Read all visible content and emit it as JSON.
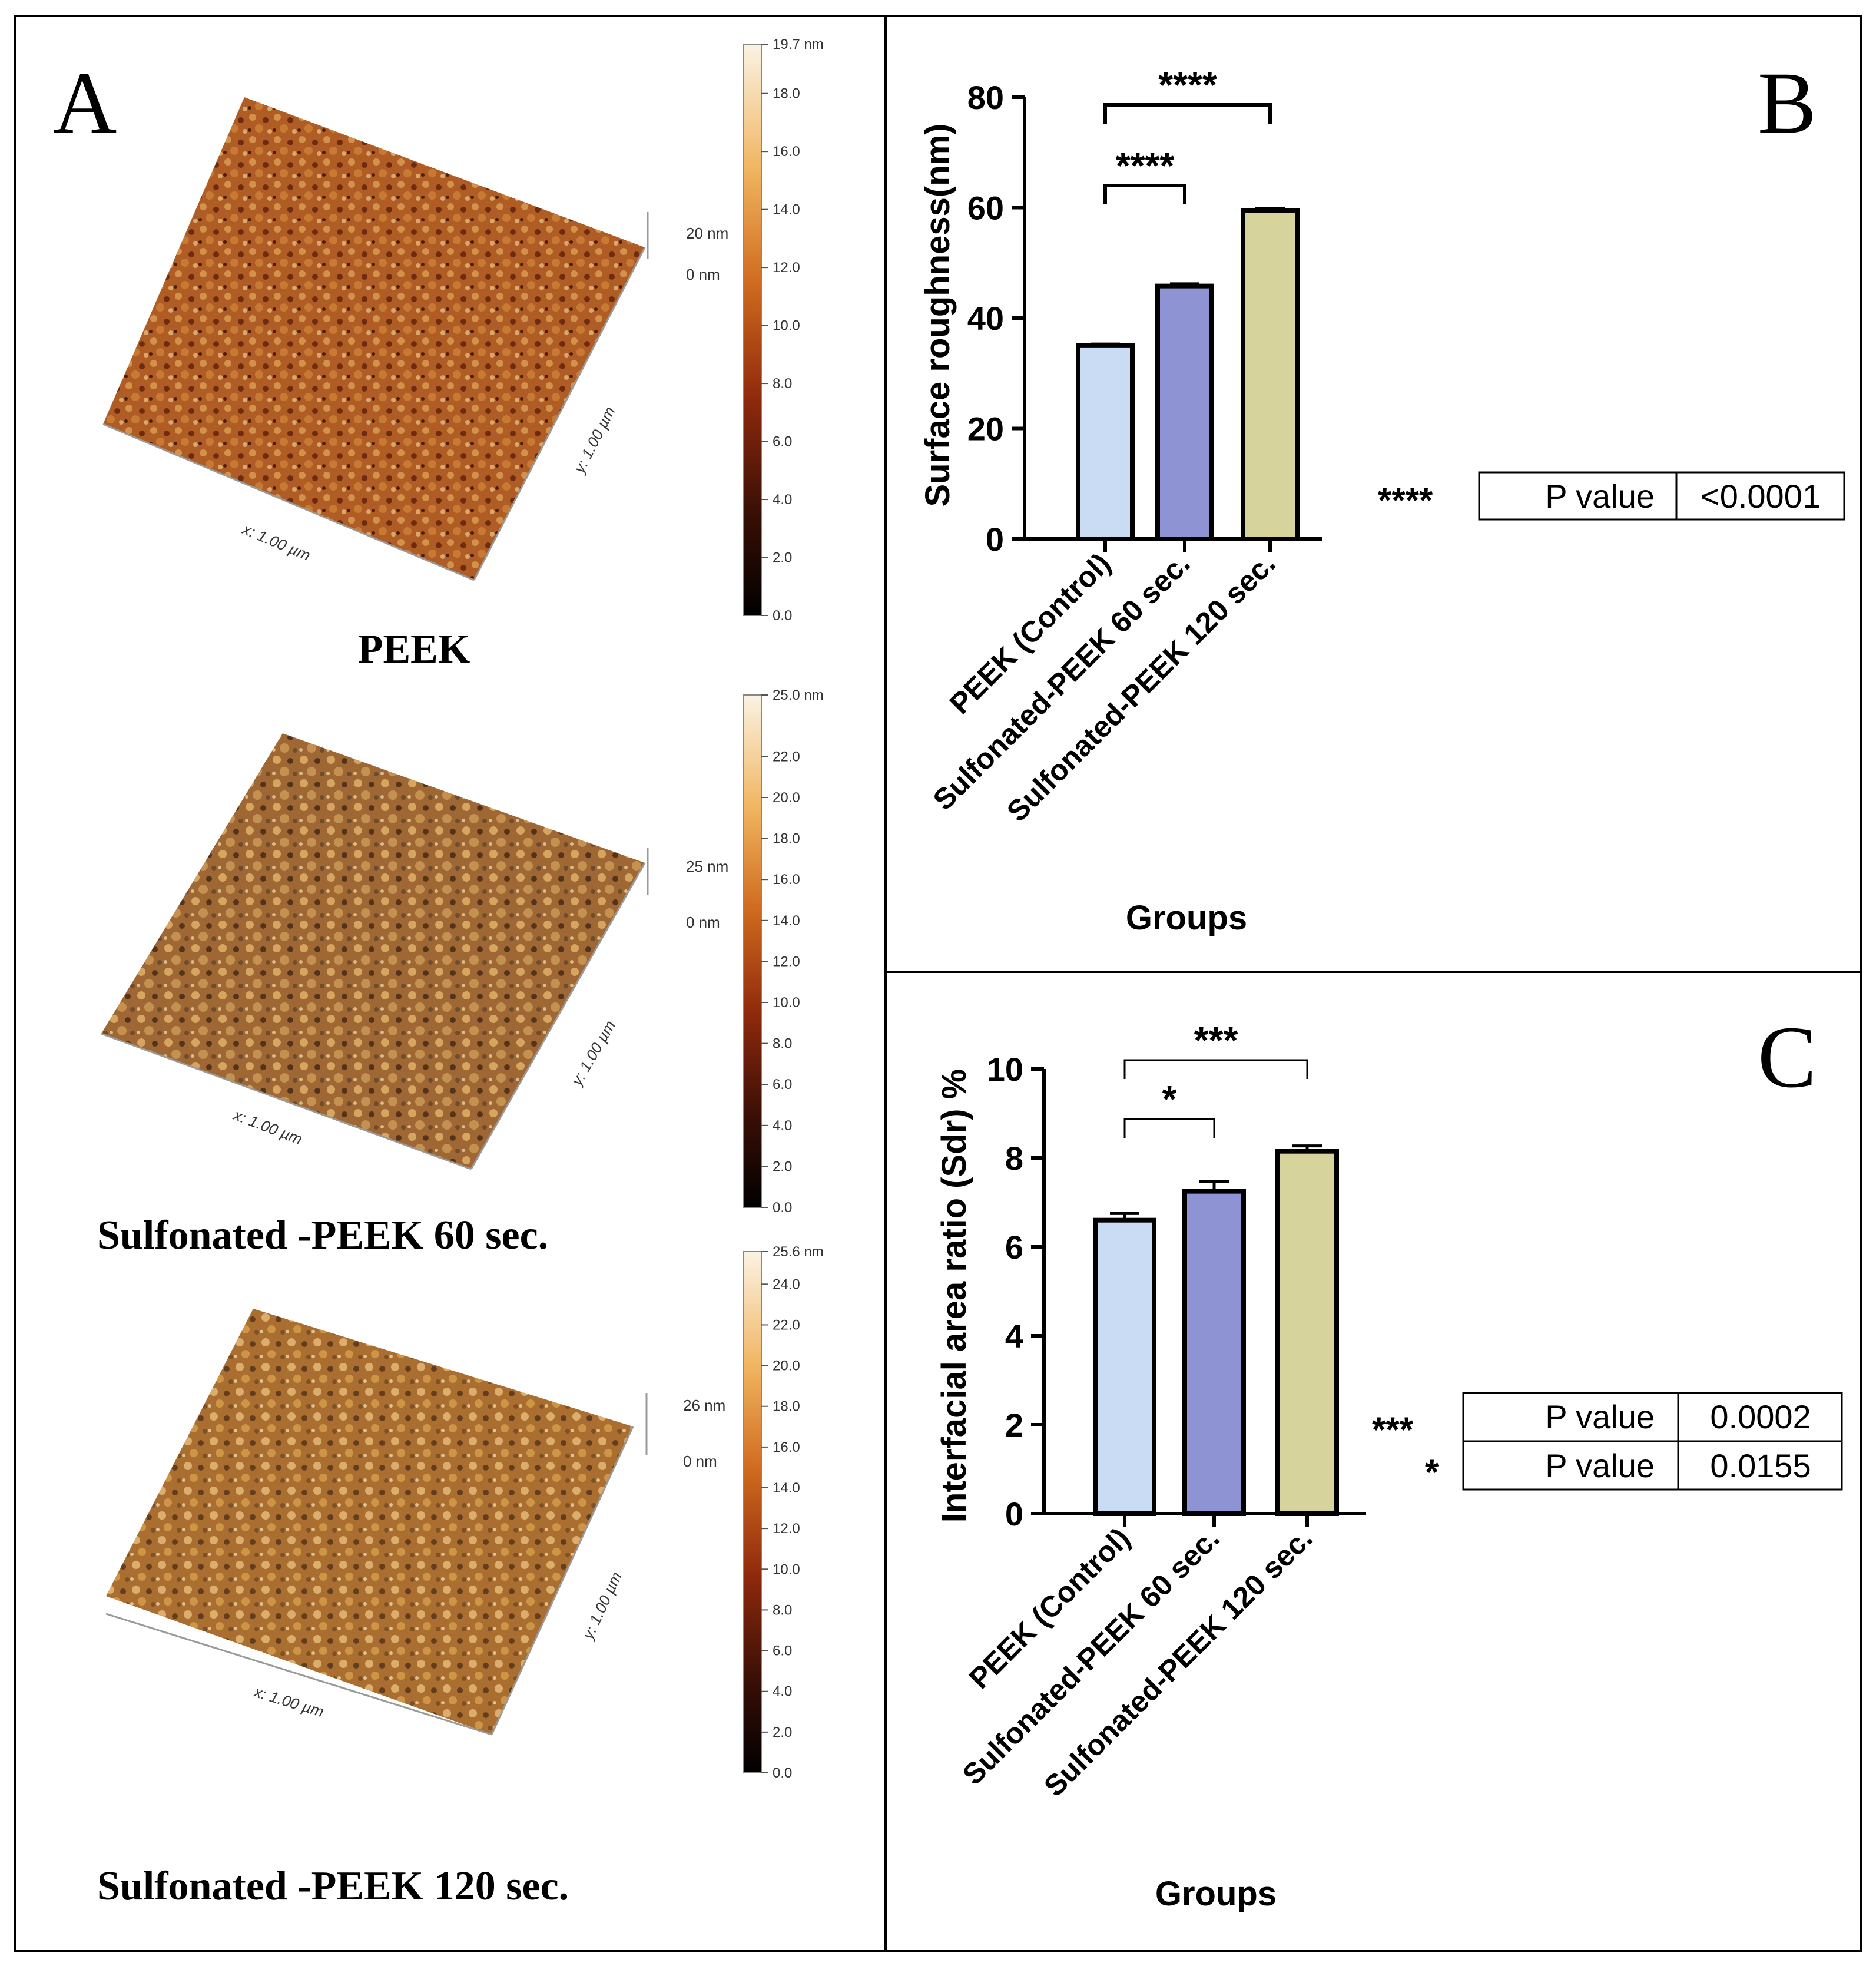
{
  "panels": {
    "a": {
      "letter": "A",
      "surfaces": [
        {
          "caption": "PEEK",
          "height_label": "20 nm",
          "zero_label": "0 nm",
          "x_label": "x: 1.00 µm",
          "y_label": "y: 1.00 µm",
          "scale_ticks": [
            "19.7 nm",
            "18.0",
            "16.0",
            "14.0",
            "12.0",
            "10.0",
            "8.0",
            "6.0",
            "4.0",
            "2.0",
            "0.0"
          ],
          "scale_max": 19.7
        },
        {
          "caption": "Sulfonated -PEEK 60 sec.",
          "height_label": "25 nm",
          "zero_label": "0 nm",
          "x_label": "x: 1.00 µm",
          "y_label": "y: 1.00 µm",
          "scale_ticks": [
            "25.0 nm",
            "22.0",
            "20.0",
            "18.0",
            "16.0",
            "14.0",
            "12.0",
            "10.0",
            "8.0",
            "6.0",
            "4.0",
            "2.0",
            "0.0"
          ],
          "scale_max": 25.0
        },
        {
          "caption": "Sulfonated -PEEK 120 sec.",
          "height_label": "26 nm",
          "zero_label": "0 nm",
          "x_label": "x: 1.00 µm",
          "y_label": "y: 1.00 µm",
          "scale_ticks": [
            "25.6 nm",
            "24.0",
            "22.0",
            "20.0",
            "18.0",
            "16.0",
            "14.0",
            "12.0",
            "10.0",
            "8.0",
            "6.0",
            "4.0",
            "2.0",
            "0.0"
          ],
          "scale_max": 25.6
        }
      ]
    },
    "b": {
      "letter": "B",
      "pvalue_stars": "****",
      "pvalue_label": "P value",
      "pvalue_value": "<0.0001"
    },
    "c": {
      "letter": "C",
      "pvalues": [
        {
          "stars": "***",
          "label": "P value",
          "value": "0.0002"
        },
        {
          "stars": "*",
          "label": "P value",
          "value": "0.0155"
        }
      ]
    }
  },
  "colors": {
    "control": "#c9dcf4",
    "s60": "#8d93d3",
    "s120": "#d6d49c",
    "ink": "#000000"
  },
  "chart_data": [
    {
      "type": "bar",
      "categories": [
        "PEEK (Control)",
        "Sulfonated-PEEK 60 sec.",
        "Sulfonated-PEEK 120 sec."
      ],
      "values": [
        35,
        45.8,
        59.5
      ],
      "errors": [
        0.3,
        0.4,
        0.4
      ],
      "xlabel": "Groups",
      "ylabel": "Surface roughness(nm)",
      "ylim": [
        0,
        80
      ],
      "yticks": [
        "0",
        "20",
        "40",
        "60",
        "80"
      ],
      "significance": [
        {
          "from": 0,
          "to": 1,
          "stars": "****"
        },
        {
          "from": 0,
          "to": 2,
          "stars": "****"
        }
      ]
    },
    {
      "type": "bar",
      "categories": [
        "PEEK (Control)",
        "Sulfonated-PEEK 60 sec.",
        "Sulfonated-PEEK 120 sec."
      ],
      "values": [
        6.6,
        7.25,
        8.15
      ],
      "errors": [
        0.15,
        0.22,
        0.12
      ],
      "xlabel": "Groups",
      "ylabel": "Interfacial area ratio (Sdr) %",
      "ylim": [
        0,
        10
      ],
      "yticks": [
        "0",
        "2",
        "4",
        "6",
        "8",
        "10"
      ],
      "significance": [
        {
          "from": 0,
          "to": 1,
          "stars": "*"
        },
        {
          "from": 0,
          "to": 2,
          "stars": "***"
        }
      ]
    }
  ]
}
